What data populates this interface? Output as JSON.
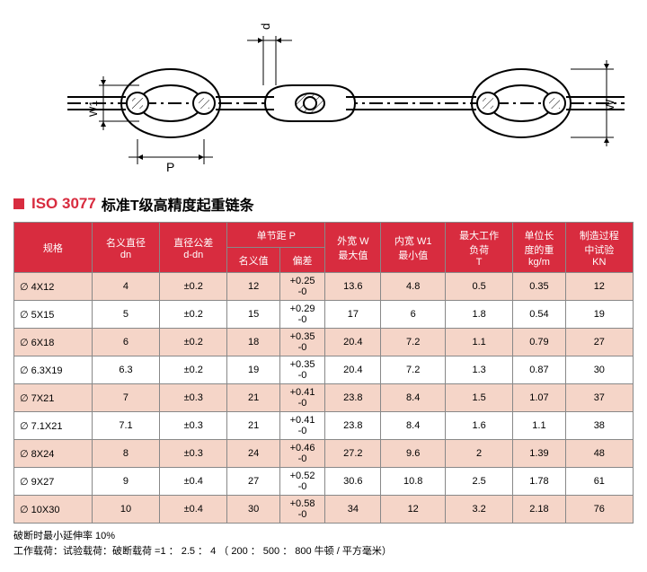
{
  "title": {
    "iso": "ISO 3077",
    "text": "标准T级高精度起重链条"
  },
  "diagram": {
    "labels": {
      "p_top": "d",
      "w1": "W1",
      "p_bottom": "P",
      "w_right": "W"
    },
    "colors": {
      "stroke": "#000",
      "fill": "#fff",
      "hatch": "#000"
    }
  },
  "table": {
    "headers": {
      "spec": "规格",
      "dn": "名义直径\ndn",
      "ddn": "直径公差\nd-dn",
      "pitch": "单节距 P",
      "nominal": "名义值",
      "dev": "偏差",
      "wmax": "外宽 W\n最大值",
      "w1min": "内宽 W1\n最小值",
      "load": "最大工作\n负荷\nT",
      "weight": "单位长\n度的重\nkg/m",
      "test": "制造过程\n中试验\nKN"
    },
    "rows": [
      {
        "spec": "∅ 4X12",
        "dn": "4",
        "ddn": "±0.2",
        "nom": "12",
        "dev": "+0.25\n-0",
        "wmax": "13.6",
        "w1min": "4.8",
        "load": "0.5",
        "weight": "0.35",
        "test": "12"
      },
      {
        "spec": "∅ 5X15",
        "dn": "5",
        "ddn": "±0.2",
        "nom": "15",
        "dev": "+0.29\n-0",
        "wmax": "17",
        "w1min": "6",
        "load": "1.8",
        "weight": "0.54",
        "test": "19"
      },
      {
        "spec": "∅ 6X18",
        "dn": "6",
        "ddn": "±0.2",
        "nom": "18",
        "dev": "+0.35\n-0",
        "wmax": "20.4",
        "w1min": "7.2",
        "load": "1.1",
        "weight": "0.79",
        "test": "27"
      },
      {
        "spec": "∅ 6.3X19",
        "dn": "6.3",
        "ddn": "±0.2",
        "nom": "19",
        "dev": "+0.35\n-0",
        "wmax": "20.4",
        "w1min": "7.2",
        "load": "1.3",
        "weight": "0.87",
        "test": "30"
      },
      {
        "spec": "∅ 7X21",
        "dn": "7",
        "ddn": "±0.3",
        "nom": "21",
        "dev": "+0.41\n-0",
        "wmax": "23.8",
        "w1min": "8.4",
        "load": "1.5",
        "weight": "1.07",
        "test": "37"
      },
      {
        "spec": "∅ 7.1X21",
        "dn": "7.1",
        "ddn": "±0.3",
        "nom": "21",
        "dev": "+0.41\n-0",
        "wmax": "23.8",
        "w1min": "8.4",
        "load": "1.6",
        "weight": "1.1",
        "test": "38"
      },
      {
        "spec": "∅ 8X24",
        "dn": "8",
        "ddn": "±0.3",
        "nom": "24",
        "dev": "+0.46\n-0",
        "wmax": "27.2",
        "w1min": "9.6",
        "load": "2",
        "weight": "1.39",
        "test": "48"
      },
      {
        "spec": "∅ 9X27",
        "dn": "9",
        "ddn": "±0.4",
        "nom": "27",
        "dev": "+0.52\n-0",
        "wmax": "30.6",
        "w1min": "10.8",
        "load": "2.5",
        "weight": "1.78",
        "test": "61"
      },
      {
        "spec": "∅ 10X30",
        "dn": "10",
        "ddn": "±0.4",
        "nom": "30",
        "dev": "+0.58\n-0",
        "wmax": "34",
        "w1min": "12",
        "load": "3.2",
        "weight": "2.18",
        "test": "76"
      }
    ]
  },
  "footer": {
    "line1": "破断时最小延伸率 10%",
    "line2": "工作载荷：试验载荷：破断载荷 =1 ： 2.5 ： 4 （ 200 ： 500 ： 800 牛顿 / 平方毫米）"
  }
}
